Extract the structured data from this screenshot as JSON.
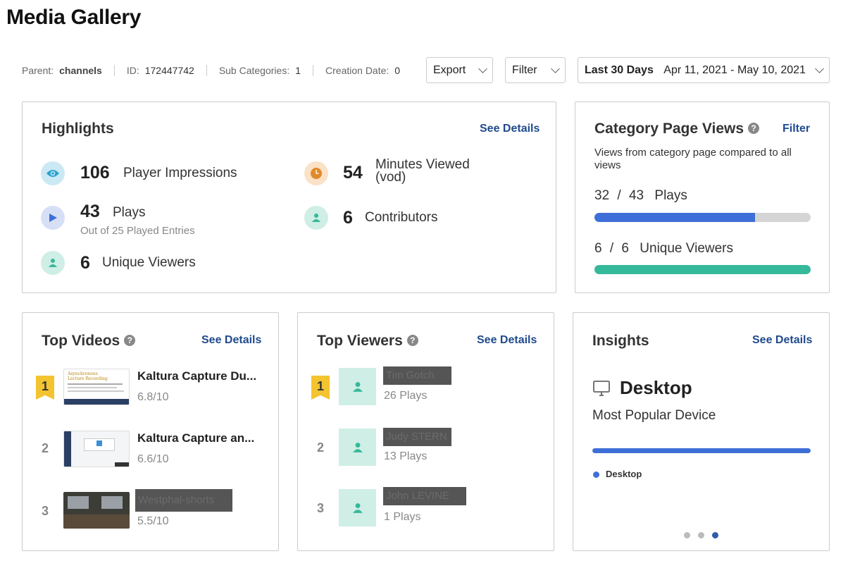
{
  "page": {
    "title": "Media Gallery"
  },
  "meta": {
    "parent_label": "Parent:",
    "parent_value": "channels",
    "id_label": "ID:",
    "id_value": "172447742",
    "subcat_label": "Sub Categories:",
    "subcat_value": "1",
    "created_label": "Creation Date:",
    "created_value": "0"
  },
  "toolbar": {
    "export_label": "Export",
    "filter_label": "Filter",
    "range_label": "Last 30 Days",
    "range_value": "Apr 11, 2021 - May 10, 2021"
  },
  "highlights": {
    "title": "Highlights",
    "see_details": "See Details",
    "player_impressions": {
      "value": "106",
      "label": "Player Impressions"
    },
    "minutes_viewed": {
      "value": "54",
      "label": "Minutes Viewed",
      "label2": "(vod)"
    },
    "plays": {
      "value": "43",
      "label": "Plays",
      "sub": "Out of 25 Played Entries"
    },
    "contributors": {
      "value": "6",
      "label": "Contributors"
    },
    "unique_viewers": {
      "value": "6",
      "label": "Unique Viewers"
    }
  },
  "category_views": {
    "title": "Category Page Views",
    "filter_link": "Filter",
    "description": "Views from category page compared to all views",
    "plays": {
      "part": "32",
      "sep": "/",
      "total": "43",
      "label": "Plays",
      "fraction": 0.744
    },
    "viewers": {
      "part": "6",
      "sep": "/",
      "total": "6",
      "label": "Unique Viewers",
      "fraction": 1.0
    }
  },
  "top_videos": {
    "title": "Top Videos",
    "see_details": "See Details",
    "items": [
      {
        "rank": "1",
        "title": "Kaltura Capture Du...",
        "score": "6.8/10",
        "thumb_title": "Asynchronous Lecture Recording"
      },
      {
        "rank": "2",
        "title": "Kaltura Capture an...",
        "score": "6.6/10"
      },
      {
        "rank": "3",
        "title": "Westphal-shorts",
        "score": "5.5/10"
      }
    ]
  },
  "top_viewers": {
    "title": "Top Viewers",
    "see_details": "See Details",
    "items": [
      {
        "rank": "1",
        "name": "Tim Gotch",
        "plays": "26 Plays"
      },
      {
        "rank": "2",
        "name": "Judy STERN",
        "plays": "13 Plays"
      },
      {
        "rank": "3",
        "name": "John LEVINE",
        "plays": "1 Plays"
      }
    ]
  },
  "insights": {
    "title": "Insights",
    "see_details": "See Details",
    "device": "Desktop",
    "caption": "Most Popular Device",
    "legend": "Desktop",
    "share": 1.0
  },
  "colors": {
    "accent_blue": "#3e6fd8",
    "teal": "#34b99a",
    "link": "#1f4a8c",
    "badge_gold": "#f3c430"
  },
  "icons": {
    "impressions": "eye-icon",
    "minutes": "clock-icon",
    "plays": "play-icon",
    "contributors": "user-icon",
    "viewers": "user-icon",
    "device": "desktop-monitor-icon"
  }
}
